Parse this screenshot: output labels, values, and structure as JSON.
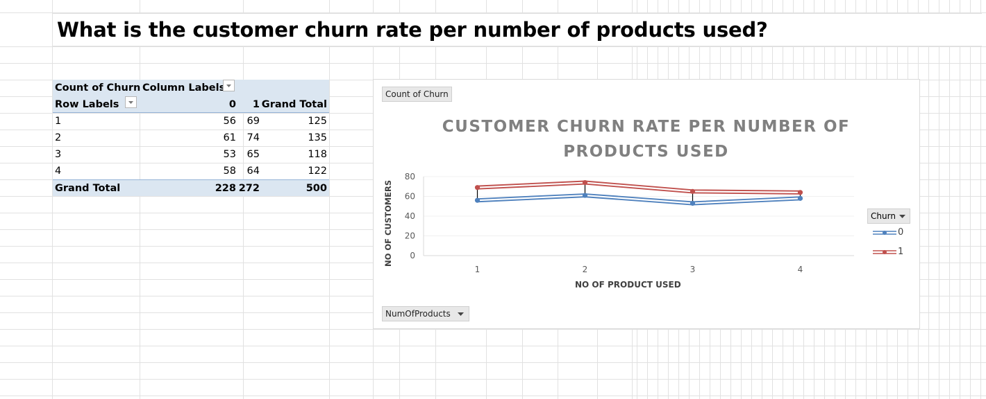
{
  "heading": "What is the customer churn rate per number of products used?",
  "pivot": {
    "corner_label": "Count of Churn",
    "column_labels": "Column Labels",
    "row_labels": "Row Labels",
    "columns": [
      "0",
      "1",
      "Grand Total"
    ],
    "rows": [
      {
        "label": "1",
        "v0": "56",
        "v1": "69",
        "total": "125"
      },
      {
        "label": "2",
        "v0": "61",
        "v1": "74",
        "total": "135"
      },
      {
        "label": "3",
        "v0": "53",
        "v1": "65",
        "total": "118"
      },
      {
        "label": "4",
        "v0": "58",
        "v1": "64",
        "total": "122"
      }
    ],
    "grand_total": {
      "label": "Grand Total",
      "v0": "228",
      "v1": "272",
      "total": "500"
    }
  },
  "chart": {
    "value_field_button": "Count of Churn",
    "axis_field_button": "NumOfProducts",
    "legend_field_button": "Churn"
  },
  "chart_data": {
    "type": "line",
    "title": "CUSTOMER CHURN RATE PER NUMBER OF PRODUCTS USED",
    "xlabel": "NO OF PRODUCT USED",
    "ylabel": "NO OF CUSTOMERS",
    "categories": [
      "1",
      "2",
      "3",
      "4"
    ],
    "ylim": [
      0,
      80
    ],
    "yticks": [
      0,
      20,
      40,
      60,
      80
    ],
    "grid": true,
    "legend_placement": "right",
    "series": [
      {
        "name": "0",
        "values": [
          56,
          61,
          53,
          58
        ],
        "color": "#4f81bd"
      },
      {
        "name": "1",
        "values": [
          69,
          74,
          65,
          64
        ],
        "color": "#c0504d"
      }
    ]
  }
}
